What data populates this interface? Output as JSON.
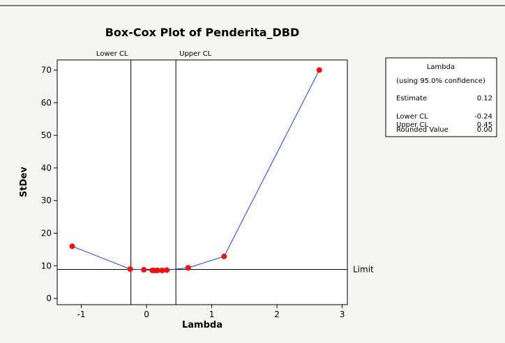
{
  "chart_data": {
    "type": "line",
    "title": "Box-Cox Plot of Penderita_DBD",
    "x_label": "Lambda",
    "y_label": "StDev",
    "x": [
      -1.14,
      -0.25,
      -0.04,
      0.09,
      0.13,
      0.17,
      0.24,
      0.31,
      0.64,
      1.19,
      2.65
    ],
    "series": [
      {
        "color": "#1f3fd8",
        "marker_color": "#ee1111",
        "values": [
          16,
          9,
          8.8,
          8.6,
          8.55,
          8.6,
          8.6,
          8.7,
          9.4,
          12.9,
          70
        ]
      }
    ],
    "xlim": [
      -1.37,
      3.08
    ],
    "ylim": [
      -1.9,
      73.1
    ],
    "xticks": [
      -1,
      0,
      1,
      2,
      3
    ],
    "yticks": [
      0,
      10,
      20,
      30,
      40,
      50,
      60,
      70
    ],
    "vlines": [
      {
        "label": "Lower CL",
        "value": -0.24
      },
      {
        "label": "Upper CL",
        "value": 0.45
      }
    ],
    "hline": {
      "label": "Limit",
      "value": 8.9
    },
    "lambda_table": {
      "title": "Lambda",
      "subtitle": "(using 95.0% confidence)",
      "estimate": {
        "label": "Estimate",
        "value": 0.12
      },
      "rounded": {
        "label": "Rounded Value",
        "value": {
          "value": 0,
          "label": "0.00"
        }
      }
    }
  }
}
